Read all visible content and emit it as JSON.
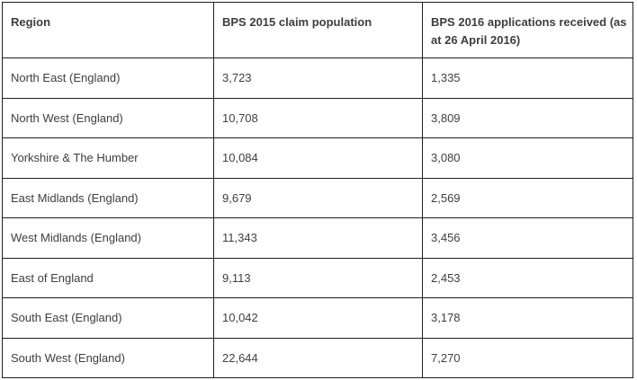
{
  "table": {
    "columns": [
      {
        "label": "Region"
      },
      {
        "label": "BPS 2015 claim population"
      },
      {
        "label": "BPS 2016 applications received (as\nat 26 April 2016)"
      }
    ],
    "rows": [
      {
        "region": "North East (England)",
        "claim_2015": "3,723",
        "applications_2016": "1,335"
      },
      {
        "region": "North West (England)",
        "claim_2015": "10,708",
        "applications_2016": "3,809"
      },
      {
        "region": "Yorkshire & The Humber",
        "claim_2015": "10,084",
        "applications_2016": "3,080"
      },
      {
        "region": "East Midlands (England)",
        "claim_2015": "9,679",
        "applications_2016": "2,569"
      },
      {
        "region": "West Midlands (England)",
        "claim_2015": "11,343",
        "applications_2016": "3,456"
      },
      {
        "region": "East of England",
        "claim_2015": "9,113",
        "applications_2016": "2,453"
      },
      {
        "region": "South East (England)",
        "claim_2015": "10,042",
        "applications_2016": "3,178"
      },
      {
        "region": "South West (England)",
        "claim_2015": "22,644",
        "applications_2016": "7,270"
      }
    ]
  }
}
